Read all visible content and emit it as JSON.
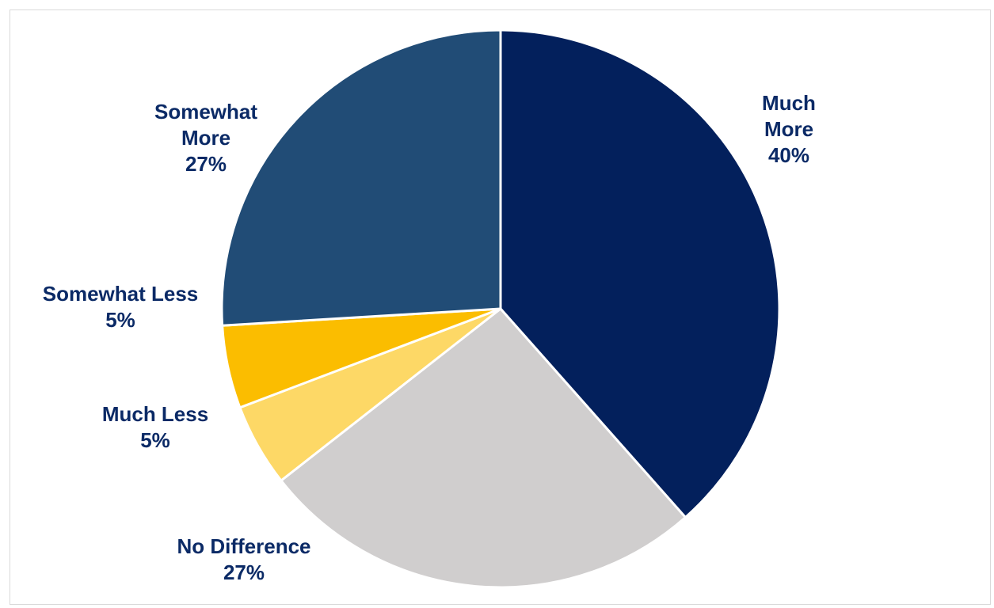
{
  "chart_data": {
    "type": "pie",
    "title": "",
    "start_angle_deg": 0,
    "direction": "clockwise",
    "legend": "none",
    "label_color": "#0b2a66",
    "slice_border_color": "#ffffff",
    "slices": [
      {
        "name": "Much More",
        "label_lines": [
          "Much",
          "More"
        ],
        "percent_label": "40%",
        "value": 40,
        "color": "#03205c"
      },
      {
        "name": "No Difference",
        "label_lines": [
          "No Difference"
        ],
        "percent_label": "27%",
        "value": 27,
        "color": "#d0cece"
      },
      {
        "name": "Much Less",
        "label_lines": [
          "Much Less"
        ],
        "percent_label": "5%",
        "value": 5,
        "color": "#fdd866"
      },
      {
        "name": "Somewhat Less",
        "label_lines": [
          "Somewhat Less"
        ],
        "percent_label": "5%",
        "value": 5,
        "color": "#fbbd00"
      },
      {
        "name": "Somewhat More",
        "label_lines": [
          "Somewhat",
          "More"
        ],
        "percent_label": "27%",
        "value": 27,
        "color": "#214c76"
      }
    ]
  }
}
